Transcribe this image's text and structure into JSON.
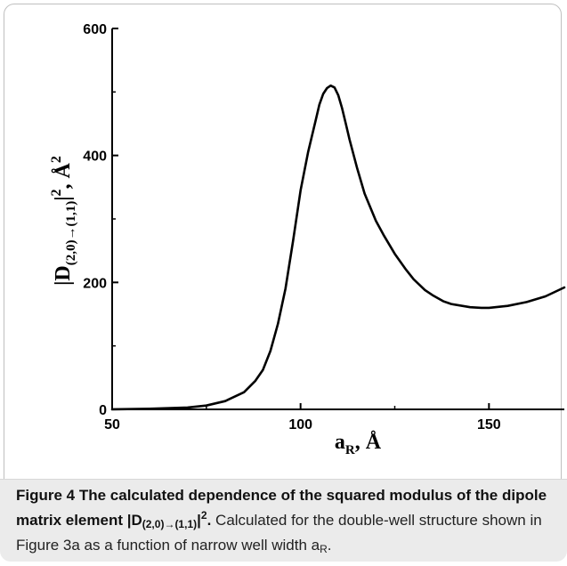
{
  "chart_data": {
    "type": "line",
    "series": [
      {
        "x": [
          50,
          60,
          70,
          75,
          80,
          85,
          88,
          90,
          92,
          94,
          96,
          98,
          100,
          102,
          104,
          105,
          106,
          107,
          108,
          109,
          110,
          111,
          112,
          113,
          115,
          117,
          120,
          122,
          125,
          128,
          130,
          133,
          135,
          138,
          140,
          145,
          148,
          150,
          155,
          160,
          165,
          170
        ],
        "y": [
          0,
          1,
          3,
          6,
          13,
          27,
          45,
          62,
          92,
          135,
          190,
          265,
          345,
          405,
          455,
          480,
          497,
          506,
          510,
          507,
          495,
          475,
          450,
          425,
          380,
          340,
          297,
          275,
          245,
          220,
          205,
          188,
          180,
          170,
          166,
          161,
          160,
          160,
          163,
          169,
          178,
          192
        ]
      }
    ],
    "xlim": [
      50,
      170
    ],
    "ylim": [
      0,
      600
    ],
    "xticks": [
      "50",
      "100",
      "150"
    ],
    "yticks": [
      "0",
      "200",
      "400",
      "600"
    ],
    "xlabel": "a_R, Å",
    "ylabel": "|D_(2,0)→(1,1)|², Å²",
    "grid": false
  },
  "axis": {
    "xlabel_main": "a",
    "xlabel_sub": "R",
    "xlabel_unit": ", Å",
    "ylabel_bar_open": "|D",
    "ylabel_sub": "(2,0)→(1,1)",
    "ylabel_bar_close": "|",
    "ylabel_pow": "2",
    "ylabel_unit": ", Å",
    "ylabel_unit_pow": "2"
  },
  "caption": {
    "title_part": "Figure 4 The calculated dependence of the squared modulus of the dipole matrix element |D",
    "title_sub": "(2,0)→(1,1)",
    "title_end": "|",
    "title_sup": "2",
    "title_dot": ".",
    "body_part": " Calculated for the double-well structure shown in Figure 3a as a function of narrow well width a",
    "body_sub": "R",
    "body_end": "."
  }
}
